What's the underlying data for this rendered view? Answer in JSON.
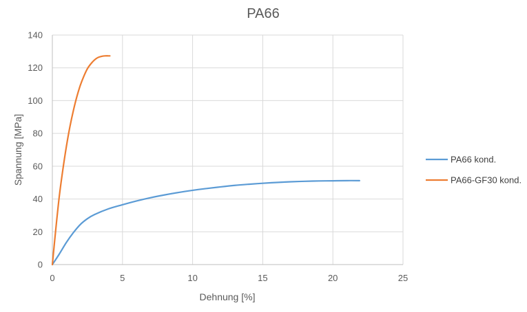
{
  "chart_data": {
    "type": "line",
    "title": "PA66",
    "xlabel": "Dehnung [%]",
    "ylabel": "Spannung [MPa]",
    "xlim": [
      0,
      25
    ],
    "ylim": [
      0,
      140
    ],
    "xticks": [
      0,
      5,
      10,
      15,
      20,
      25
    ],
    "yticks": [
      0,
      20,
      40,
      60,
      80,
      100,
      120,
      140
    ],
    "grid": true,
    "legend_position": "right",
    "series": [
      {
        "name": "PA66 kond.",
        "color": "#5b9bd5",
        "x": [
          0,
          0.5,
          1,
          1.5,
          2,
          2.5,
          3,
          4,
          5,
          6,
          7,
          8,
          9,
          10,
          11,
          12,
          13,
          14,
          15,
          16,
          17,
          18,
          19,
          20,
          21,
          21.9
        ],
        "y": [
          0,
          6.5,
          13.5,
          19.5,
          24.5,
          28,
          30.5,
          34,
          36.5,
          38.8,
          40.8,
          42.5,
          44,
          45.3,
          46.4,
          47.4,
          48.3,
          49,
          49.6,
          50.1,
          50.5,
          50.8,
          51,
          51.1,
          51.2,
          51.2
        ]
      },
      {
        "name": "PA66-GF30 kond.",
        "color": "#ed7d31",
        "x": [
          0,
          0.25,
          0.5,
          0.75,
          1,
          1.25,
          1.5,
          1.75,
          2,
          2.25,
          2.5,
          2.75,
          3,
          3.25,
          3.5,
          3.75,
          4,
          4.1
        ],
        "y": [
          0,
          22,
          42,
          58,
          72,
          84,
          94,
          102.5,
          109.5,
          115,
          119.5,
          122.5,
          124.8,
          126.3,
          127,
          127.3,
          127.3,
          127.3
        ]
      }
    ]
  }
}
